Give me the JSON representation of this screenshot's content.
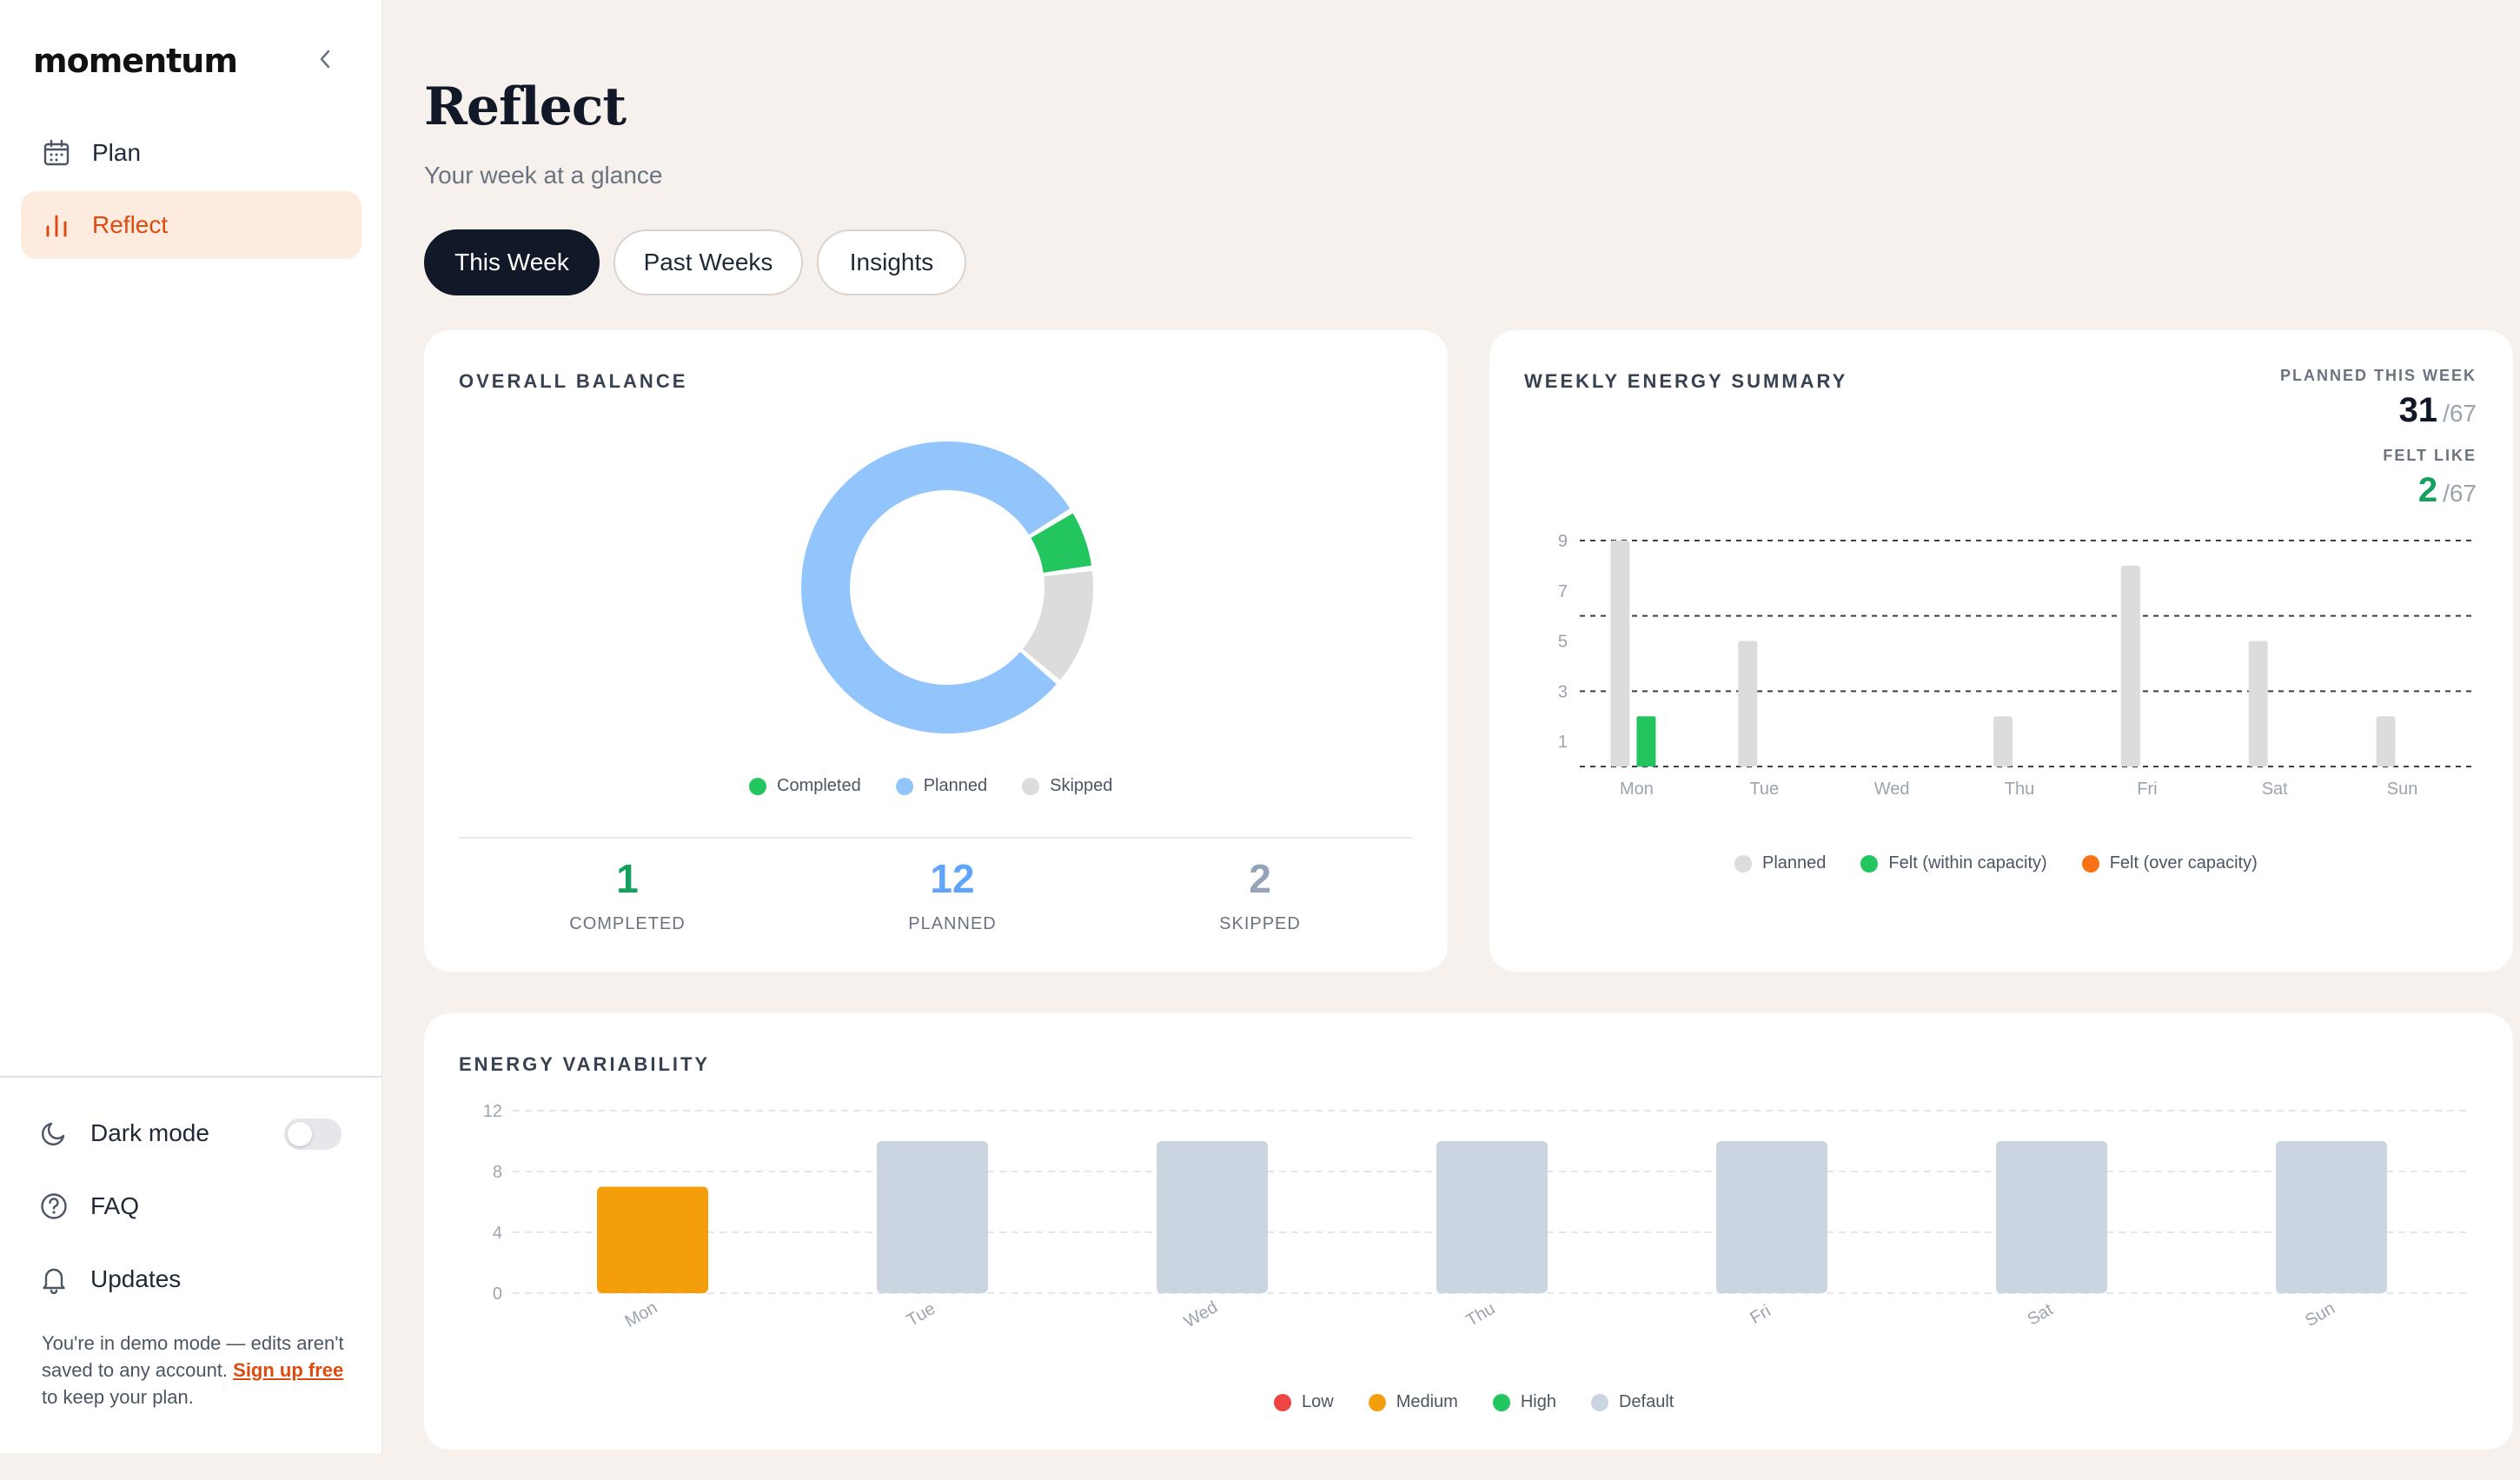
{
  "app": {
    "logo": "momentum"
  },
  "sidebar": {
    "items": [
      {
        "label": "Plan",
        "icon": "calendar-icon",
        "active": false
      },
      {
        "label": "Reflect",
        "icon": "bar-chart-icon",
        "active": true
      }
    ],
    "footer": {
      "dark_mode_label": "Dark mode",
      "dark_mode_on": false,
      "faq_label": "FAQ",
      "updates_label": "Updates",
      "demo_text_before": "You're in demo mode — edits aren't saved to any account. ",
      "demo_link": "Sign up free",
      "demo_text_after": " to keep your plan."
    }
  },
  "header": {
    "title": "Reflect",
    "subtitle": "Your week at a glance"
  },
  "tabs": [
    {
      "label": "This Week",
      "active": true
    },
    {
      "label": "Past Weeks",
      "active": false
    },
    {
      "label": "Insights",
      "active": false
    }
  ],
  "colors": {
    "completed": "#22c55e",
    "planned": "#93c5fd",
    "skipped": "#dcdcdc",
    "planned_bar": "#dcdcdc",
    "felt_within": "#22c55e",
    "felt_over": "#f97316",
    "low": "#ef4444",
    "medium": "#f59e0b",
    "high": "#22c55e",
    "default": "#cbd5e1",
    "accent": "#dd4b0f"
  },
  "overall_balance": {
    "title": "OVERALL BALANCE",
    "legend": [
      "Completed",
      "Planned",
      "Skipped"
    ],
    "stats": [
      {
        "value": "1",
        "label": "COMPLETED"
      },
      {
        "value": "12",
        "label": "PLANNED"
      },
      {
        "value": "2",
        "label": "SKIPPED"
      }
    ]
  },
  "weekly_energy": {
    "title": "WEEKLY ENERGY SUMMARY",
    "planned_label": "PLANNED THIS WEEK",
    "planned_value": "31",
    "planned_total": "/67",
    "felt_label": "FELT LIKE",
    "felt_value": "2",
    "felt_total": "/67",
    "legend": [
      "Planned",
      "Felt (within capacity)",
      "Felt (over capacity)"
    ]
  },
  "energy_variability": {
    "title": "ENERGY VARIABILITY",
    "legend": [
      "Low",
      "Medium",
      "High",
      "Default"
    ]
  },
  "chart_data": [
    {
      "type": "pie",
      "categories": [
        "Completed",
        "Planned",
        "Skipped"
      ],
      "values": [
        1,
        12,
        2
      ],
      "donut": true
    },
    {
      "type": "bar",
      "categories": [
        "Mon",
        "Tue",
        "Wed",
        "Thu",
        "Fri",
        "Sat",
        "Sun"
      ],
      "series": [
        {
          "name": "Planned",
          "values": [
            9,
            5,
            0,
            2,
            8,
            5,
            2
          ]
        },
        {
          "name": "Felt (within capacity)",
          "values": [
            2,
            0,
            0,
            0,
            0,
            0,
            0
          ]
        },
        {
          "name": "Felt (over capacity)",
          "values": [
            0,
            0,
            0,
            0,
            0,
            0,
            0
          ]
        }
      ],
      "yticks": [
        1,
        3,
        5,
        7,
        9
      ],
      "ylim": [
        0,
        9
      ],
      "grid": true,
      "legend_position": "bottom"
    },
    {
      "type": "bar",
      "categories": [
        "Mon",
        "Tue",
        "Wed",
        "Thu",
        "Fri",
        "Sat",
        "Sun"
      ],
      "values": [
        7,
        10,
        10,
        10,
        10,
        10,
        10
      ],
      "levels": [
        "Medium",
        "Default",
        "Default",
        "Default",
        "Default",
        "Default",
        "Default"
      ],
      "yticks": [
        0,
        4,
        8,
        12
      ],
      "ylim": [
        0,
        12
      ],
      "grid": true,
      "legend_position": "bottom"
    }
  ]
}
